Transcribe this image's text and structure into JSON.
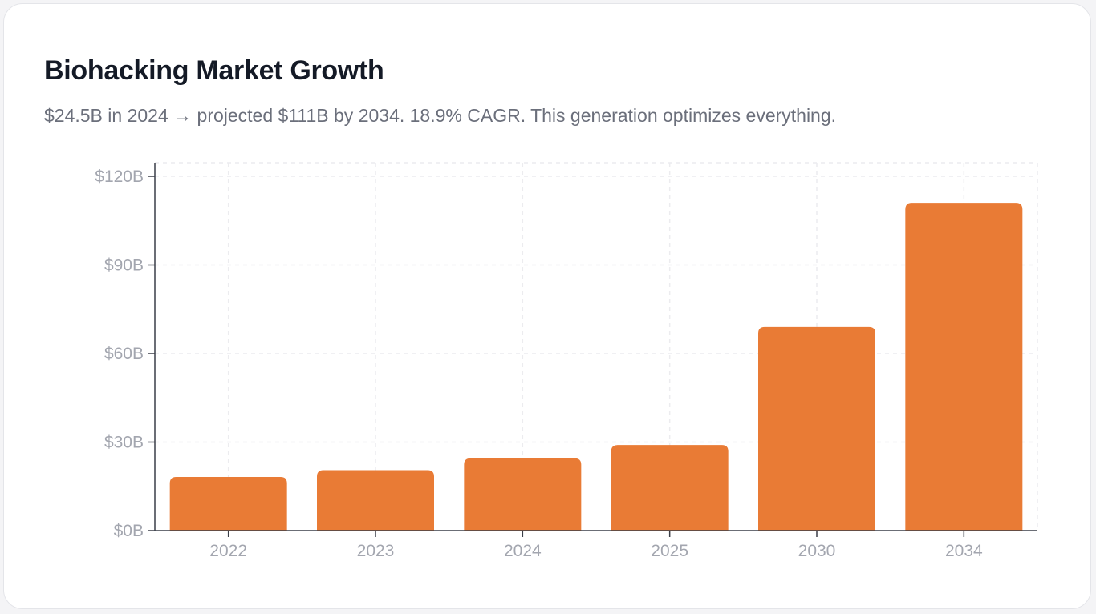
{
  "title": "Biohacking Market Growth",
  "subtitle": "$24.5B in 2024 → projected $111B by 2034. 18.9% CAGR. This generation optimizes everything.",
  "colors": {
    "bar": "#e97b35",
    "axis": "#3a3e48",
    "grid": "#ececef",
    "tick_text": "#a3a6af"
  },
  "chart_data": {
    "type": "bar",
    "categories": [
      "2022",
      "2023",
      "2024",
      "2025",
      "2030",
      "2034"
    ],
    "values": [
      18.2,
      20.5,
      24.5,
      29,
      69,
      111
    ],
    "ylim": [
      0,
      120
    ],
    "yticks": [
      0,
      30,
      60,
      90,
      120
    ],
    "ytick_labels": [
      "$0B",
      "$30B",
      "$60B",
      "$90B",
      "$120B"
    ],
    "grid": true,
    "legend": "none",
    "xlabel": "",
    "ylabel": ""
  }
}
